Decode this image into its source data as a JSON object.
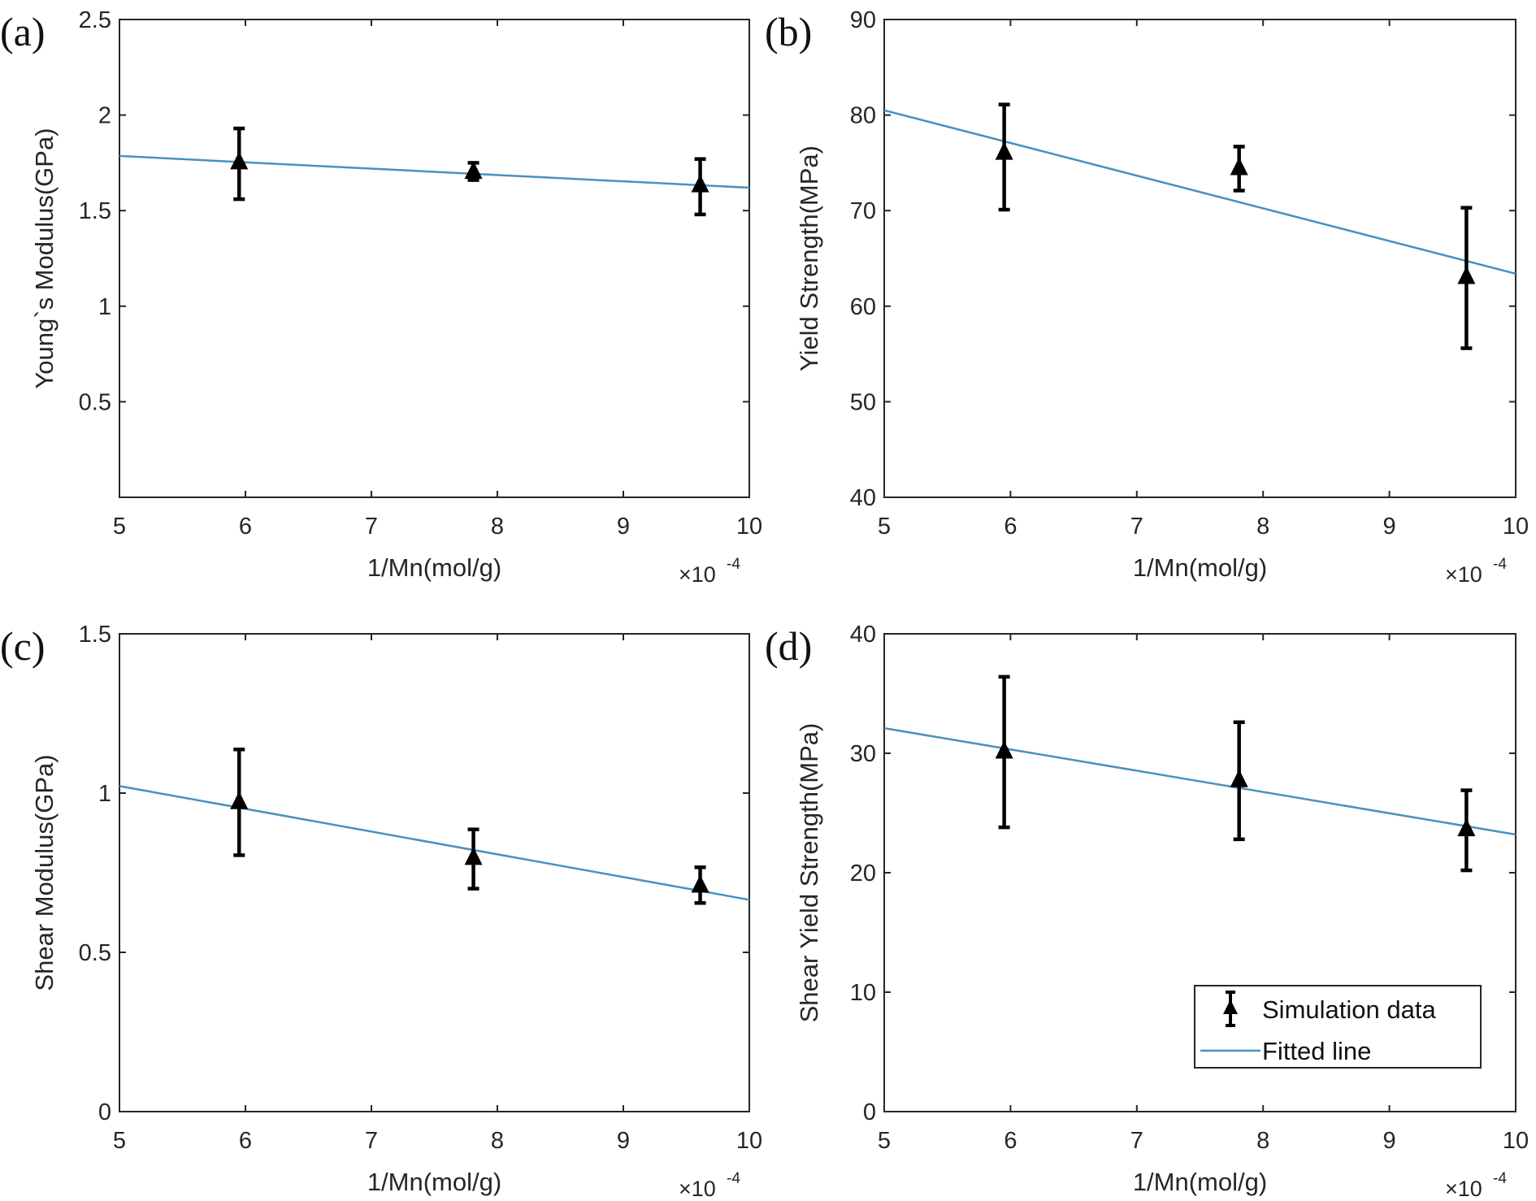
{
  "figure": {
    "legend": {
      "entries": [
        {
          "label": "Simulation data",
          "marker": "triangle-errorbar",
          "color": "#000000"
        },
        {
          "label": "Fitted line",
          "marker": "line",
          "color": "#4a90c0"
        }
      ],
      "placement": "bottom-right of panel (d)"
    },
    "colors": {
      "fit_line": "#4a90c0",
      "data": "#000000",
      "axes": "#262626"
    }
  },
  "chart_data": [
    {
      "type": "scatter",
      "panel_label": "(a)",
      "title": "",
      "xlabel": "1/Mn(mol/g)",
      "x_multiplier": "×10",
      "x_multiplier_exp": "-4",
      "ylabel": "Young`s Modulus(GPa)",
      "xlim": [
        5,
        10
      ],
      "ylim": [
        0,
        2.5
      ],
      "xticks": [
        5,
        6,
        7,
        8,
        9,
        10
      ],
      "yticks": [
        0.5,
        1,
        1.5,
        2,
        2.5
      ],
      "ytick_labels": [
        "0.5",
        "1",
        "1.5",
        "2",
        "2.5"
      ],
      "grid": false,
      "series": [
        {
          "name": "Simulation data",
          "x": [
            5.95,
            7.81,
            9.61
          ],
          "y": [
            1.75,
            1.7,
            1.63
          ],
          "err_low": [
            1.56,
            1.66,
            1.48
          ],
          "err_high": [
            1.93,
            1.75,
            1.77
          ]
        },
        {
          "name": "Fitted line",
          "x": [
            5,
            10
          ],
          "y": [
            1.786,
            1.62
          ]
        }
      ]
    },
    {
      "type": "scatter",
      "panel_label": "(b)",
      "title": "",
      "xlabel": "1/Mn(mol/g)",
      "x_multiplier": "×10",
      "x_multiplier_exp": "-4",
      "ylabel": "Yield Strength(MPa)",
      "xlim": [
        5,
        10
      ],
      "ylim": [
        40,
        90
      ],
      "xticks": [
        5,
        6,
        7,
        8,
        9,
        10
      ],
      "yticks": [
        40,
        50,
        60,
        70,
        80,
        90
      ],
      "ytick_labels": [
        "40",
        "50",
        "60",
        "70",
        "80",
        "90"
      ],
      "grid": false,
      "series": [
        {
          "name": "Simulation data",
          "x": [
            5.95,
            7.81,
            9.61
          ],
          "y": [
            76.0,
            74.4,
            63.0
          ],
          "err_low": [
            70.1,
            72.1,
            55.6
          ],
          "err_high": [
            81.1,
            76.7,
            70.3
          ]
        },
        {
          "name": "Fitted line",
          "x": [
            5,
            10
          ],
          "y": [
            80.5,
            63.4
          ]
        }
      ]
    },
    {
      "type": "scatter",
      "panel_label": "(c)",
      "title": "",
      "xlabel": "1/Mn(mol/g)",
      "x_multiplier": "×10",
      "x_multiplier_exp": "-4",
      "ylabel": "Shear Modulus(GPa)",
      "xlim": [
        5,
        10
      ],
      "ylim": [
        0,
        1.5
      ],
      "xticks": [
        5,
        6,
        7,
        8,
        9,
        10
      ],
      "yticks": [
        0,
        0.5,
        1,
        1.5
      ],
      "ytick_labels": [
        "0",
        "0.5",
        "1",
        "1.5"
      ],
      "grid": false,
      "series": [
        {
          "name": "Simulation data",
          "x": [
            5.95,
            7.81,
            9.61
          ],
          "y": [
            0.97,
            0.795,
            0.708
          ],
          "err_low": [
            0.805,
            0.7,
            0.655
          ],
          "err_high": [
            1.137,
            0.886,
            0.767
          ]
        },
        {
          "name": "Fitted line",
          "x": [
            5,
            10
          ],
          "y": [
            1.022,
            0.665
          ]
        }
      ]
    },
    {
      "type": "scatter",
      "panel_label": "(d)",
      "title": "",
      "xlabel": "1/Mn(mol/g)",
      "x_multiplier": "×10",
      "x_multiplier_exp": "-4",
      "ylabel": "Shear Yield Strength(MPa)",
      "xlim": [
        5,
        10
      ],
      "ylim": [
        0,
        40
      ],
      "xticks": [
        5,
        6,
        7,
        8,
        9,
        10
      ],
      "yticks": [
        0,
        10,
        20,
        30,
        40
      ],
      "ytick_labels": [
        "0",
        "10",
        "20",
        "30",
        "40"
      ],
      "grid": false,
      "series": [
        {
          "name": "Simulation data",
          "x": [
            5.95,
            7.81,
            9.61
          ],
          "y": [
            30.1,
            27.7,
            23.6
          ],
          "err_low": [
            23.8,
            22.8,
            20.2
          ],
          "err_high": [
            36.4,
            32.6,
            26.9
          ]
        },
        {
          "name": "Fitted line",
          "x": [
            5,
            10
          ],
          "y": [
            32.1,
            23.2
          ]
        }
      ]
    }
  ]
}
